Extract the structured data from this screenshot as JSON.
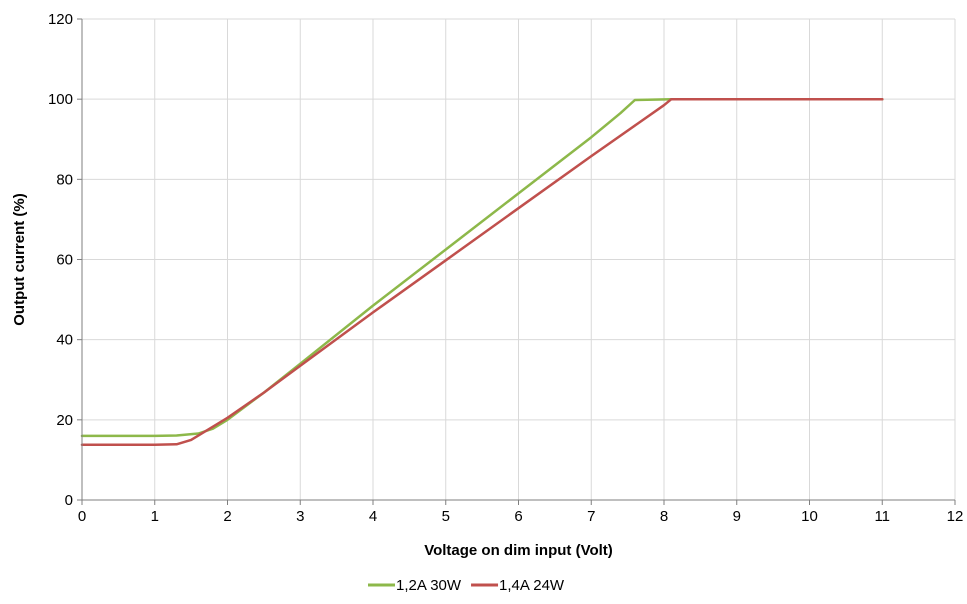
{
  "chart_data": {
    "type": "line",
    "xlabel": "Voltage on dim input (Volt)",
    "ylabel": "Output current (%)",
    "xlim": [
      0,
      12
    ],
    "ylim": [
      0,
      120
    ],
    "xticks": [
      0,
      1,
      2,
      3,
      4,
      5,
      6,
      7,
      8,
      9,
      10,
      11,
      12
    ],
    "yticks": [
      0,
      20,
      40,
      60,
      80,
      100,
      120
    ],
    "grid": true,
    "legend_position": "bottom",
    "series": [
      {
        "name": "1,2A 30W",
        "color": "#8db84a",
        "points": [
          [
            0,
            16
          ],
          [
            1,
            16
          ],
          [
            1.3,
            16.1
          ],
          [
            1.6,
            16.6
          ],
          [
            1.8,
            17.8
          ],
          [
            2,
            20
          ],
          [
            2.5,
            26.8
          ],
          [
            3,
            34
          ],
          [
            4,
            48.5
          ],
          [
            5,
            62.5
          ],
          [
            6,
            76.5
          ],
          [
            7,
            90.5
          ],
          [
            7.4,
            96.5
          ],
          [
            7.6,
            99.8
          ],
          [
            8.1,
            100
          ],
          [
            11,
            100
          ]
        ]
      },
      {
        "name": "1,4A 24W",
        "color": "#c0504d",
        "points": [
          [
            0,
            13.8
          ],
          [
            1,
            13.8
          ],
          [
            1.3,
            13.9
          ],
          [
            1.5,
            15
          ],
          [
            1.7,
            17.2
          ],
          [
            2,
            20.5
          ],
          [
            2.5,
            26.8
          ],
          [
            3,
            33.5
          ],
          [
            4,
            46.8
          ],
          [
            5,
            59.8
          ],
          [
            6,
            72.8
          ],
          [
            7,
            85.8
          ],
          [
            8,
            98.5
          ],
          [
            8.1,
            100
          ],
          [
            11,
            100
          ]
        ]
      }
    ]
  }
}
